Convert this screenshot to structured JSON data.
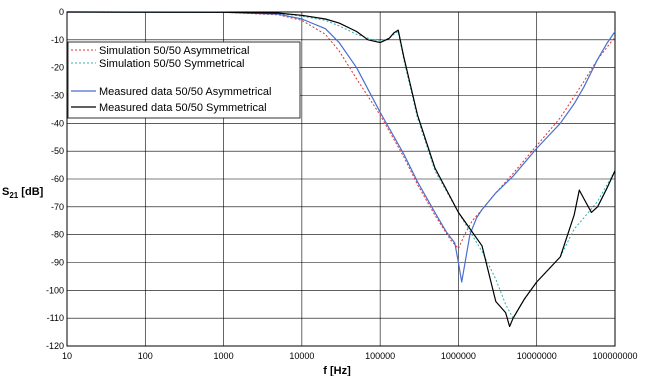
{
  "chart_data": {
    "type": "line",
    "xlabel": "f [Hz]",
    "ylabel": "S",
    "ylabel_sub": "21",
    "ylabel_unit": " [dB]",
    "x_scale": "log",
    "xlim": [
      10,
      100000000
    ],
    "ylim": [
      -120,
      0
    ],
    "grid": true,
    "legend_placement": "upper-left",
    "x_ticks": [
      {
        "value": 10,
        "label": "10"
      },
      {
        "value": 100,
        "label": "100"
      },
      {
        "value": 1000,
        "label": "1000"
      },
      {
        "value": 10000,
        "label": "10000"
      },
      {
        "value": 100000,
        "label": "100000"
      },
      {
        "value": 1000000,
        "label": "1000000"
      },
      {
        "value": 10000000,
        "label": "10000000"
      },
      {
        "value": 100000000,
        "label": "100000000"
      }
    ],
    "y_ticks": [
      {
        "value": 0,
        "label": "0"
      },
      {
        "value": -10,
        "label": "-10"
      },
      {
        "value": -20,
        "label": "-20"
      },
      {
        "value": -30,
        "label": "-30"
      },
      {
        "value": -40,
        "label": "-40"
      },
      {
        "value": -50,
        "label": "-50"
      },
      {
        "value": -60,
        "label": "-60"
      },
      {
        "value": -70,
        "label": "-70"
      },
      {
        "value": -80,
        "label": "-80"
      },
      {
        "value": -90,
        "label": "-90"
      },
      {
        "value": -100,
        "label": "-100"
      },
      {
        "value": -110,
        "label": "-110"
      },
      {
        "value": -120,
        "label": "-120"
      }
    ],
    "series": [
      {
        "name": "Simulation 50/50 Asymmetrical",
        "color": "#e03030",
        "dash": "2,2",
        "points": [
          [
            10,
            0
          ],
          [
            1000,
            -0.1
          ],
          [
            5000,
            -1
          ],
          [
            10000,
            -3
          ],
          [
            20000,
            -8
          ],
          [
            30000,
            -14
          ],
          [
            50000,
            -24
          ],
          [
            100000,
            -37
          ],
          [
            200000,
            -52
          ],
          [
            300000,
            -62
          ],
          [
            500000,
            -73
          ],
          [
            800000,
            -82
          ],
          [
            1000000,
            -85
          ],
          [
            1200000,
            -80
          ],
          [
            1500000,
            -75
          ],
          [
            2000000,
            -71
          ],
          [
            3000000,
            -65
          ],
          [
            5000000,
            -58
          ],
          [
            10000000,
            -48
          ],
          [
            20000000,
            -38
          ],
          [
            40000000,
            -25
          ],
          [
            60000000,
            -17
          ],
          [
            100000000,
            -9
          ]
        ]
      },
      {
        "name": "Simulation 50/50 Symmetrical",
        "color": "#30b0b0",
        "dash": "2,2",
        "points": [
          [
            10,
            0
          ],
          [
            1000,
            -0.1
          ],
          [
            5000,
            -0.5
          ],
          [
            10000,
            -1.5
          ],
          [
            20000,
            -3
          ],
          [
            30000,
            -5
          ],
          [
            50000,
            -8
          ],
          [
            80000,
            -10
          ],
          [
            100000,
            -10.5
          ],
          [
            130000,
            -9.5
          ],
          [
            150000,
            -8
          ],
          [
            170000,
            -7
          ],
          [
            200000,
            -17
          ],
          [
            300000,
            -38
          ],
          [
            500000,
            -57
          ],
          [
            1000000,
            -72
          ],
          [
            2000000,
            -86
          ],
          [
            3000000,
            -96
          ],
          [
            4000000,
            -105
          ],
          [
            5000000,
            -110
          ],
          [
            6000000,
            -106
          ],
          [
            10000000,
            -97
          ],
          [
            20000000,
            -88
          ],
          [
            30000000,
            -78
          ],
          [
            40000000,
            -74
          ],
          [
            60000000,
            -68
          ],
          [
            100000000,
            -57
          ]
        ]
      },
      {
        "name": "Measured data 50/50 Asymmetrical",
        "color": "#4a6fd0",
        "dash": "",
        "points": [
          [
            10,
            0
          ],
          [
            1000,
            -0.1
          ],
          [
            5000,
            -0.8
          ],
          [
            10000,
            -2.5
          ],
          [
            20000,
            -6
          ],
          [
            30000,
            -11
          ],
          [
            50000,
            -20
          ],
          [
            100000,
            -36
          ],
          [
            200000,
            -51
          ],
          [
            300000,
            -61
          ],
          [
            500000,
            -72
          ],
          [
            700000,
            -79
          ],
          [
            900000,
            -83
          ],
          [
            1000000,
            -90
          ],
          [
            1100000,
            -97
          ],
          [
            1200000,
            -91
          ],
          [
            1400000,
            -80
          ],
          [
            1700000,
            -74
          ],
          [
            2000000,
            -71
          ],
          [
            3000000,
            -65
          ],
          [
            5000000,
            -59
          ],
          [
            10000000,
            -49
          ],
          [
            20000000,
            -40
          ],
          [
            30000000,
            -33
          ],
          [
            40000000,
            -27
          ],
          [
            60000000,
            -17
          ],
          [
            80000000,
            -11
          ],
          [
            100000000,
            -7
          ]
        ]
      },
      {
        "name": "Measured data 50/50 Symmetrical",
        "color": "#000000",
        "dash": "",
        "points": [
          [
            10,
            0
          ],
          [
            1000,
            -0.1
          ],
          [
            5000,
            -0.4
          ],
          [
            10000,
            -1.2
          ],
          [
            20000,
            -2.5
          ],
          [
            30000,
            -4
          ],
          [
            50000,
            -7
          ],
          [
            70000,
            -10
          ],
          [
            100000,
            -11
          ],
          [
            130000,
            -9.5
          ],
          [
            150000,
            -7.5
          ],
          [
            170000,
            -6.5
          ],
          [
            200000,
            -16
          ],
          [
            300000,
            -37
          ],
          [
            500000,
            -56
          ],
          [
            1000000,
            -72
          ],
          [
            2000000,
            -84
          ],
          [
            3000000,
            -104
          ],
          [
            4000000,
            -108
          ],
          [
            4500000,
            -113
          ],
          [
            5000000,
            -110
          ],
          [
            7000000,
            -103
          ],
          [
            10000000,
            -97
          ],
          [
            20000000,
            -88
          ],
          [
            30000000,
            -73
          ],
          [
            35000000,
            -64
          ],
          [
            40000000,
            -67
          ],
          [
            50000000,
            -72
          ],
          [
            60000000,
            -70
          ],
          [
            80000000,
            -63
          ],
          [
            100000000,
            -57
          ]
        ]
      }
    ]
  }
}
